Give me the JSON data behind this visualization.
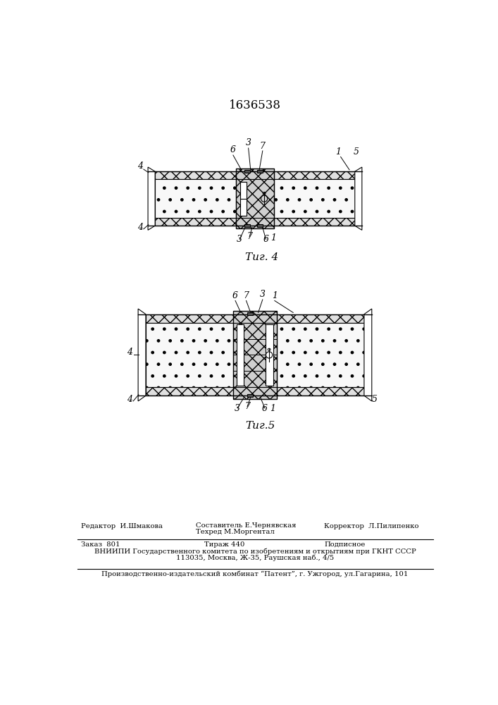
{
  "title": "1636538",
  "fig4_label": "Τиг. 4",
  "fig5_label": "Τиг.5",
  "footer_line1_left": "Редактор  И.Шмакова",
  "footer_line1_center1": "Составитель Е.Чернявская",
  "footer_line1_center2": "Техред М.Моргентал",
  "footer_line1_right": "Корректор  Л.Пилипенко",
  "footer_line2_left": "Заказ  801",
  "footer_line2_center": "Тираж 440",
  "footer_line2_right": "Подписное",
  "footer_line3": "ВНИИПИ Государственного комитета по изобретениям и открытиям при ГКНТ СССР",
  "footer_line4": "113035, Москва, Ж-35, Раушская наб., 4/5",
  "footer_line5": "Производственно-издательский комбинат “Патент”, г. Ужгород, ул.Гагарина, 101"
}
